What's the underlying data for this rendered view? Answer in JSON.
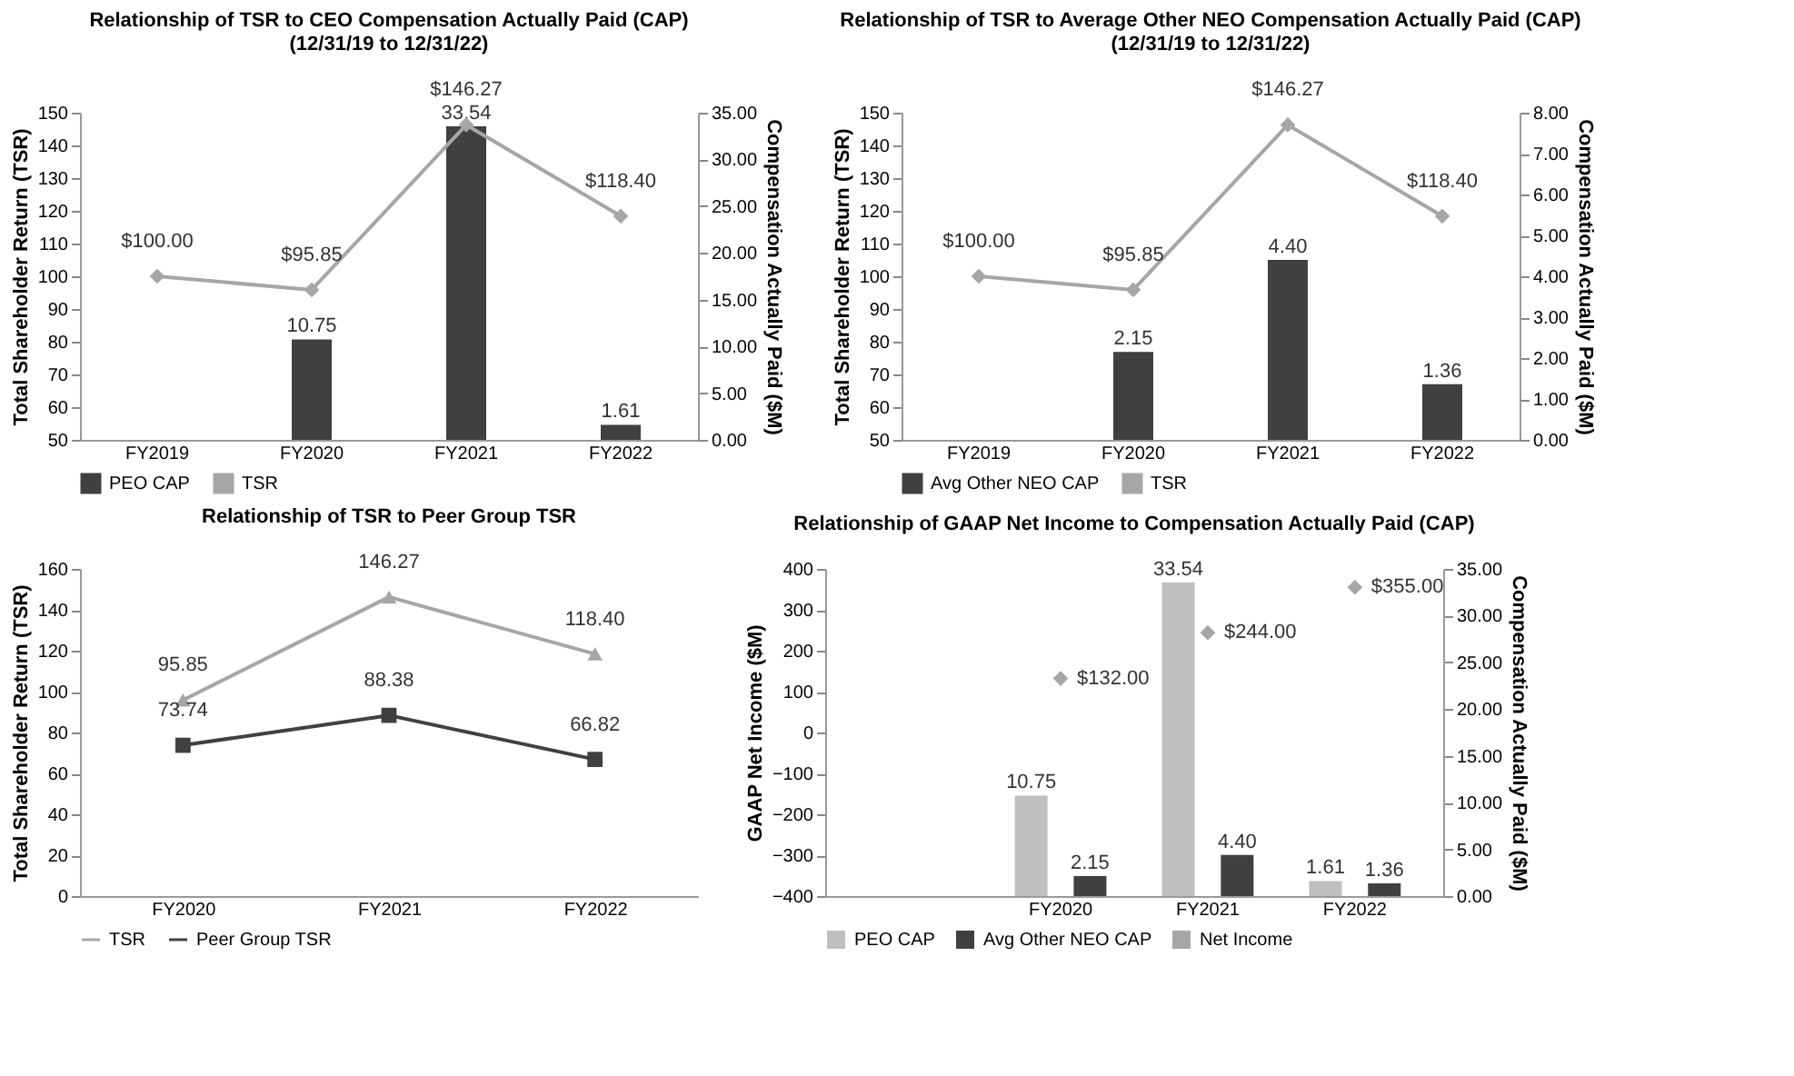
{
  "chart_data": [
    {
      "type": "bar",
      "title": "Relationship of TSR to CEO Compensation Actually Paid (CAP)\n(12/31/19 to 12/31/22)",
      "categories": [
        "FY2019",
        "FY2020",
        "FY2021",
        "FY2022"
      ],
      "ylabel": "Total Shareholder Return (TSR)",
      "y2label": "Compensation Actually Paid ($M)",
      "ylim": [
        50,
        150
      ],
      "yticks": [
        50,
        60,
        70,
        80,
        90,
        100,
        110,
        120,
        130,
        140,
        150
      ],
      "y2lim": [
        0,
        35
      ],
      "y2ticks": [
        {
          "value": 0,
          "label": "0.00"
        },
        {
          "value": 5,
          "label": "5.00"
        },
        {
          "value": 10,
          "label": "10.00"
        },
        {
          "value": 15,
          "label": "15.00"
        },
        {
          "value": 20,
          "label": "20.00"
        },
        {
          "value": 25,
          "label": "25.00"
        },
        {
          "value": 30,
          "label": "30.00"
        },
        {
          "value": 35,
          "label": "35.00"
        }
      ],
      "grid": false,
      "legend": "bottom",
      "series": [
        {
          "name": "PEO CAP",
          "type": "bar",
          "axis": "y2",
          "color": "#404040",
          "values": [
            null,
            10.75,
            33.54,
            1.61
          ],
          "value_labels": [
            null,
            "10.75",
            "33.54",
            "1.61"
          ]
        },
        {
          "name": "TSR",
          "type": "line",
          "axis": "y",
          "color": "#a6a6a6",
          "marker": "diamond",
          "values": [
            100,
            95.85,
            146.27,
            118.4
          ],
          "value_labels": [
            "$100.00",
            "$95.85",
            "$146.27",
            "$118.40"
          ]
        }
      ]
    },
    {
      "type": "bar",
      "title": "Relationship of TSR to Average Other NEO Compensation Actually Paid (CAP)\n(12/31/19 to 12/31/22)",
      "categories": [
        "FY2019",
        "FY2020",
        "FY2021",
        "FY2022"
      ],
      "ylabel": "Total Shareholder Return (TSR)",
      "y2label": "Compensation Actually Paid ($M)",
      "ylim": [
        50,
        150
      ],
      "yticks": [
        50,
        60,
        70,
        80,
        90,
        100,
        110,
        120,
        130,
        140,
        150
      ],
      "y2lim": [
        0,
        8
      ],
      "y2ticks": [
        {
          "value": 0,
          "label": "0.00"
        },
        {
          "value": 1,
          "label": "1.00"
        },
        {
          "value": 2,
          "label": "2.00"
        },
        {
          "value": 3,
          "label": "3.00"
        },
        {
          "value": 4,
          "label": "4.00"
        },
        {
          "value": 5,
          "label": "5.00"
        },
        {
          "value": 6,
          "label": "6.00"
        },
        {
          "value": 7,
          "label": "7.00"
        },
        {
          "value": 8,
          "label": "8.00"
        }
      ],
      "grid": false,
      "legend": "bottom",
      "series": [
        {
          "name": "Avg Other NEO CAP",
          "axis": "y2",
          "color": "#404040",
          "values": [
            null,
            2.15,
            4.4,
            1.36
          ],
          "value_labels": [
            null,
            "2.15",
            "4.40",
            "1.36"
          ]
        },
        {
          "name": "TSR",
          "type": "line",
          "axis": "y",
          "color": "#a6a6a6",
          "marker": "diamond",
          "values": [
            100,
            95.85,
            146.27,
            118.4
          ],
          "value_labels": [
            "$100.00",
            "$95.85",
            "$146.27",
            "$118.40"
          ]
        }
      ]
    },
    {
      "type": "line",
      "title": "Relationship of TSR to Peer Group TSR",
      "categories": [
        "FY2020",
        "FY2021",
        "FY2022"
      ],
      "ylabel": "Total Shareholder Return (TSR)",
      "ylim": [
        0,
        160
      ],
      "yticks": [
        0,
        20,
        40,
        60,
        80,
        100,
        120,
        140,
        160
      ],
      "grid": false,
      "legend": "bottom",
      "series": [
        {
          "name": "TSR",
          "axis": "y",
          "color": "#a6a6a6",
          "marker": "triangle",
          "values": [
            95.85,
            146.27,
            118.4
          ],
          "value_labels": [
            "95.85",
            "146.27",
            "118.40"
          ]
        },
        {
          "name": "Peer Group TSR",
          "axis": "y",
          "color": "#404040",
          "marker": "square",
          "values": [
            73.74,
            88.38,
            66.82
          ],
          "value_labels": [
            "73.74",
            "88.38",
            "66.82"
          ]
        }
      ]
    },
    {
      "type": "bar",
      "title": "Relationship of GAAP Net Income to Compensation Actually Paid (CAP)",
      "categories": [
        null,
        "FY2020",
        "FY2021",
        "FY2022"
      ],
      "ylabel": "GAAP Net Income ($M)",
      "y2label": "Compensation Actually Paid ($M)",
      "ylim": [
        -400,
        400
      ],
      "yticks": [
        -400,
        -300,
        -200,
        -100,
        0,
        100,
        200,
        300,
        400
      ],
      "y2lim": [
        0,
        35
      ],
      "y2ticks": [
        {
          "value": 0,
          "label": "0.00"
        },
        {
          "value": 5,
          "label": "5.00"
        },
        {
          "value": 10,
          "label": "10.00"
        },
        {
          "value": 15,
          "label": "15.00"
        },
        {
          "value": 20,
          "label": "20.00"
        },
        {
          "value": 25,
          "label": "25.00"
        },
        {
          "value": 30,
          "label": "30.00"
        },
        {
          "value": 35,
          "label": "35.00"
        }
      ],
      "grid": false,
      "legend": "bottom",
      "series": [
        {
          "name": "PEO CAP",
          "type": "bar",
          "axis": "y2",
          "color": "#bfbfbf",
          "values": [
            null,
            10.75,
            33.54,
            1.61
          ],
          "value_labels": [
            null,
            "10.75",
            "33.54",
            "1.61"
          ]
        },
        {
          "name": "Avg Other NEO CAP",
          "axis": "y2",
          "color": "#404040",
          "values": [
            null,
            2.15,
            4.4,
            1.36
          ],
          "value_labels": [
            null,
            "2.15",
            "4.40",
            "1.36"
          ]
        },
        {
          "name": "Net Income",
          "type": "scatter",
          "axis": "y",
          "color": "#a6a6a6",
          "marker": "diamond",
          "values": [
            null,
            132,
            244,
            355
          ],
          "value_labels": [
            null,
            "$132.00",
            "$244.00",
            "$355.00"
          ]
        }
      ]
    }
  ]
}
